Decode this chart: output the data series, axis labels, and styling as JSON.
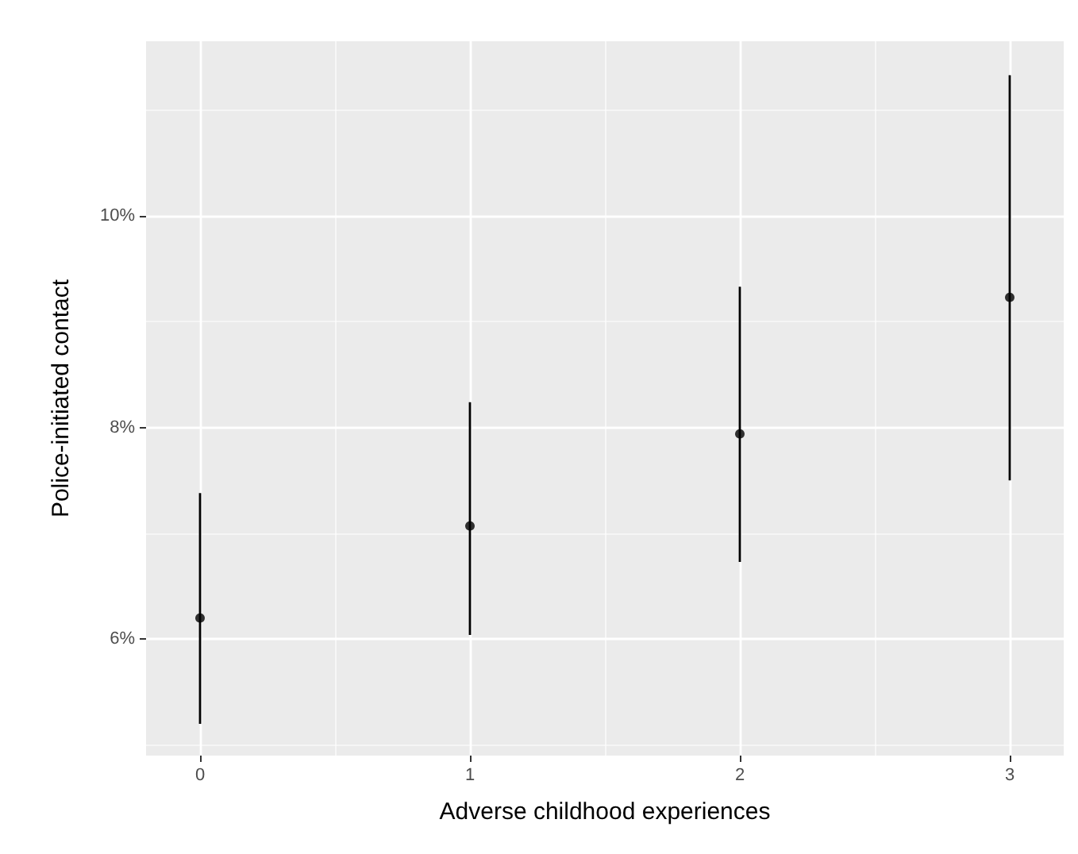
{
  "chart_data": {
    "type": "scatter",
    "xlabel": "Adverse childhood experiences",
    "ylabel": "Police-initiated contact",
    "x": [
      0,
      1,
      2,
      3
    ],
    "values": [
      6.2,
      7.07,
      7.94,
      9.23
    ],
    "errors": [
      [
        5.2,
        7.38
      ],
      [
        6.04,
        8.24
      ],
      [
        6.73,
        9.33
      ],
      [
        7.5,
        11.33
      ]
    ],
    "color": "#000000",
    "xlim": [
      -0.2,
      3.2
    ],
    "xticks": [
      0,
      1,
      2,
      3
    ],
    "ylim": [
      4.9,
      11.65
    ],
    "yticks": [
      {
        "value": 6,
        "label": "6%"
      },
      {
        "value": 8,
        "label": "8%"
      },
      {
        "value": 10,
        "label": "10%"
      }
    ],
    "grid": true,
    "marker": "circle"
  }
}
